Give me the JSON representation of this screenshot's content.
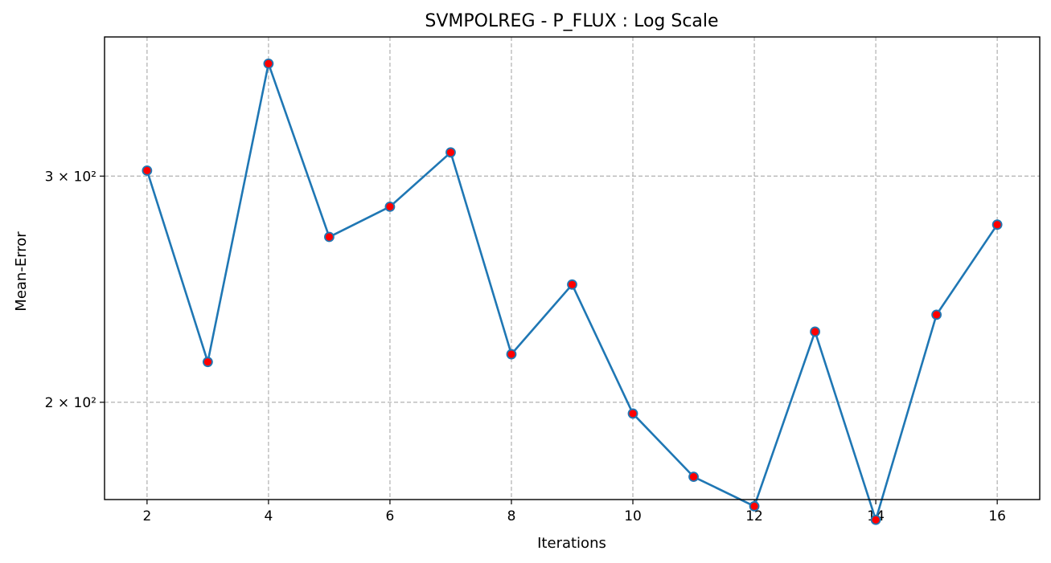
{
  "chart_data": {
    "type": "line",
    "title": "SVMPOLREG - P_FLUX : Log Scale",
    "xlabel": "Iterations",
    "ylabel": "Mean-Error",
    "yscale": "log",
    "grid": true,
    "xlim": [
      1.3,
      16.7
    ],
    "ylim": [
      168,
      385
    ],
    "x_ticks": [
      2,
      4,
      6,
      8,
      10,
      12,
      14,
      16
    ],
    "y_ticks": [
      {
        "value": 200,
        "label": "2 × 10²"
      },
      {
        "value": 300,
        "label": "3 × 10²"
      }
    ],
    "series": [
      {
        "x": [
          2,
          3,
          4,
          5,
          6,
          7,
          8,
          9,
          10,
          11,
          12,
          13,
          14,
          15,
          16
        ],
        "values": [
          303,
          215,
          367,
          269,
          284,
          313,
          218,
          247,
          196,
          175,
          166,
          227,
          162,
          234,
          275
        ],
        "line_color": "#1f77b4",
        "marker_color": "#ff0000"
      }
    ]
  }
}
